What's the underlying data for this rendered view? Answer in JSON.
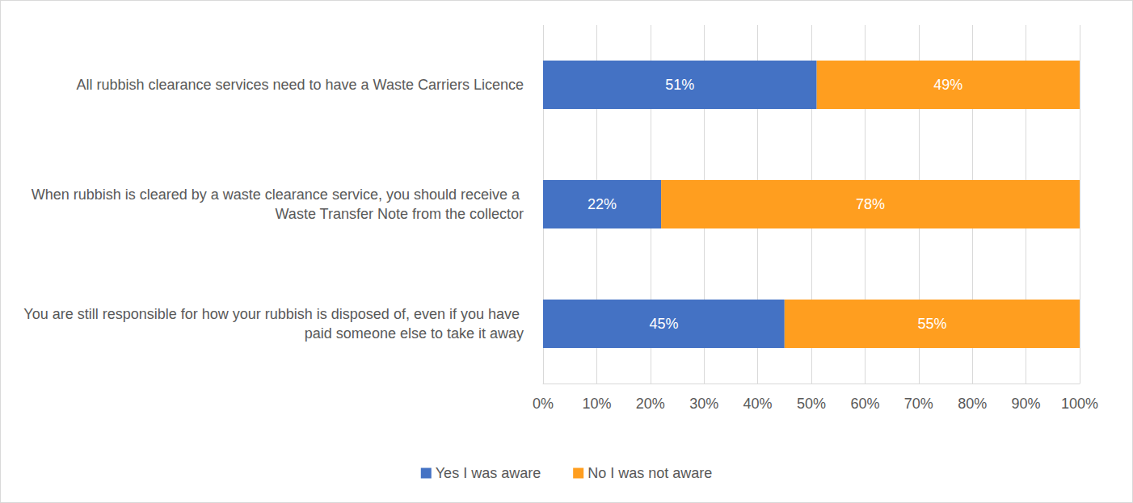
{
  "chart_data": {
    "type": "bar",
    "orientation": "horizontal",
    "stacked": true,
    "data_labels": true,
    "grid": true,
    "legend": "bottom",
    "categories": [
      "All rubbish clearance services need to have a Waste Carriers Licence",
      "When rubbish is cleared by a waste clearance service, you should receive a Waste Transfer Note from the collector",
      "You are still responsible for how your rubbish is disposed of, even if you have paid someone else to take it away"
    ],
    "series": [
      {
        "name": "Yes I was aware",
        "color": "#4472c4",
        "values": [
          51,
          22,
          45
        ],
        "value_labels": [
          "51%",
          "22%",
          "45%"
        ]
      },
      {
        "name": "No I was not aware",
        "color": "#ff9e1f",
        "values": [
          49,
          78,
          55
        ],
        "value_labels": [
          "49%",
          "78%",
          "55%"
        ]
      }
    ],
    "xlim": [
      0,
      100
    ],
    "xticks": [
      {
        "value": 0,
        "label": "0%"
      },
      {
        "value": 10,
        "label": "10%"
      },
      {
        "value": 20,
        "label": "20%"
      },
      {
        "value": 30,
        "label": "30%"
      },
      {
        "value": 40,
        "label": "40%"
      },
      {
        "value": 50,
        "label": "50%"
      },
      {
        "value": 60,
        "label": "60%"
      },
      {
        "value": 70,
        "label": "70%"
      },
      {
        "value": 80,
        "label": "80%"
      },
      {
        "value": 90,
        "label": "90%"
      },
      {
        "value": 100,
        "label": "100%"
      }
    ]
  }
}
